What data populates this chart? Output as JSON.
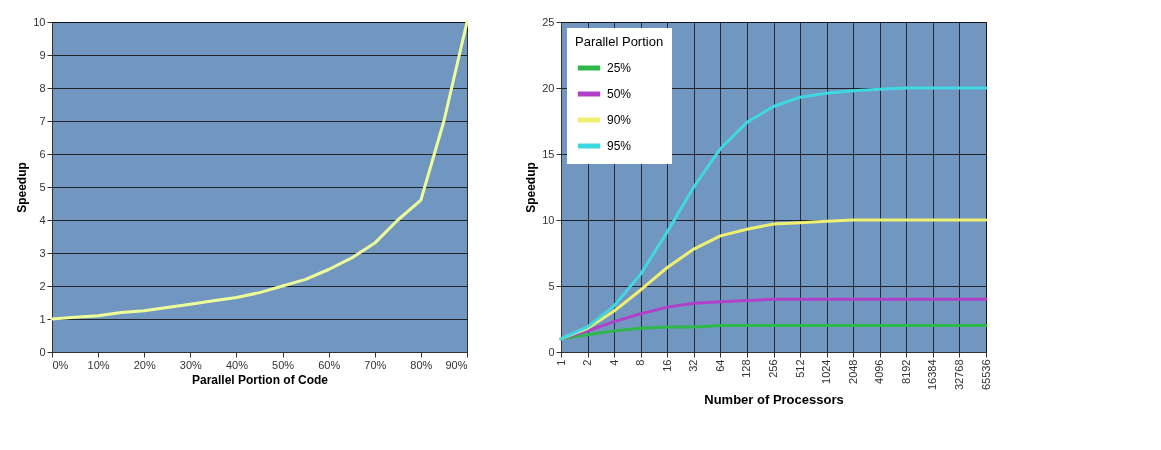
{
  "chart_data": [
    {
      "type": "line",
      "xlabel": "Parallel Portion of Code",
      "ylabel": "Speedup",
      "x": [
        0,
        5,
        10,
        15,
        20,
        25,
        30,
        35,
        40,
        45,
        50,
        55,
        60,
        65,
        70,
        75,
        80,
        85,
        90
      ],
      "series": [
        {
          "color": "#eeff99",
          "values": [
            1.0,
            1.05,
            1.1,
            1.2,
            1.25,
            1.35,
            1.45,
            1.55,
            1.65,
            1.8,
            2.0,
            2.2,
            2.5,
            2.85,
            3.3,
            4.0,
            4.6,
            7.0,
            10.0
          ]
        }
      ],
      "xlim": [
        0,
        90
      ],
      "xticks": [
        {
          "value": 0,
          "label": "0%"
        },
        {
          "value": 10,
          "label": "10%"
        },
        {
          "value": 20,
          "label": "20%"
        },
        {
          "value": 30,
          "label": "30%"
        },
        {
          "value": 40,
          "label": "40%"
        },
        {
          "value": 50,
          "label": "50%"
        },
        {
          "value": 60,
          "label": "60%"
        },
        {
          "value": 70,
          "label": "70%"
        },
        {
          "value": 80,
          "label": "80%"
        },
        {
          "value": 90,
          "label": "90%"
        }
      ],
      "ylim": [
        0,
        10
      ],
      "yticks": [
        0,
        1,
        2,
        3,
        4,
        5,
        6,
        7,
        8,
        9,
        10
      ],
      "grid": "y",
      "legend": false
    },
    {
      "type": "line",
      "xlabel": "Number of Processors",
      "ylabel": "Speedup",
      "legend_title": "Parallel Portion",
      "categories": [
        "1",
        "2",
        "4",
        "8",
        "16",
        "32",
        "64",
        "128",
        "256",
        "512",
        "1024",
        "2048",
        "4096",
        "8192",
        "16384",
        "32768",
        "65536"
      ],
      "series": [
        {
          "name": "25%",
          "color": "#2fb84a",
          "values": [
            1.0,
            1.3,
            1.6,
            1.8,
            1.9,
            1.9,
            2.0,
            2.0,
            2.0,
            2.0,
            2.0,
            2.0,
            2.0,
            2.0,
            2.0,
            2.0,
            2.0
          ]
        },
        {
          "name": "50%",
          "color": "#b040c8",
          "values": [
            1.0,
            1.6,
            2.3,
            2.9,
            3.4,
            3.7,
            3.8,
            3.9,
            4.0,
            4.0,
            4.0,
            4.0,
            4.0,
            4.0,
            4.0,
            4.0,
            4.0
          ]
        },
        {
          "name": "90%",
          "color": "#f0f070",
          "values": [
            1.0,
            1.8,
            3.1,
            4.7,
            6.4,
            7.8,
            8.8,
            9.3,
            9.7,
            9.8,
            9.9,
            10.0,
            10.0,
            10.0,
            10.0,
            10.0,
            10.0
          ]
        },
        {
          "name": "95%",
          "color": "#40d8e0",
          "values": [
            1.0,
            1.9,
            3.5,
            5.9,
            9.1,
            12.5,
            15.4,
            17.4,
            18.6,
            19.3,
            19.6,
            19.8,
            19.9,
            20.0,
            20.0,
            20.0,
            20.0
          ]
        }
      ],
      "ylim": [
        0,
        25
      ],
      "yticks": [
        0,
        5,
        10,
        15,
        20,
        25
      ],
      "grid": true,
      "legend": "top left"
    }
  ]
}
